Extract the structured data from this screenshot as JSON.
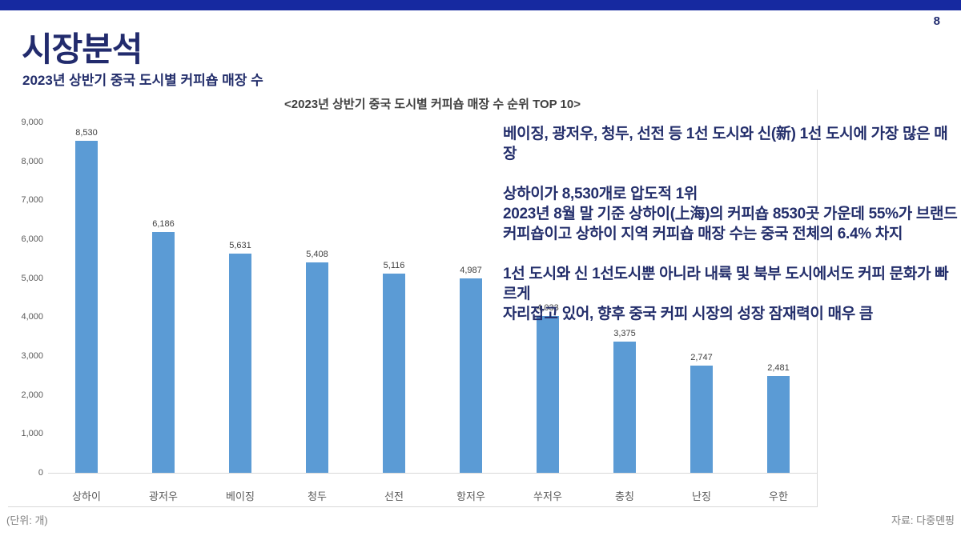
{
  "page": {
    "number": "8"
  },
  "header": {
    "title": "시장분석",
    "subtitle": "2023년 상반기 중국 도시별 커피숍 매장 수"
  },
  "chart_data": {
    "type": "bar",
    "title": "<2023년 상반기 중국 도시별 커피숍 매장 수 순위 TOP 10>",
    "categories": [
      "상하이",
      "광저우",
      "베이징",
      "청두",
      "선전",
      "항저우",
      "쑤저우",
      "충칭",
      "난징",
      "우한"
    ],
    "values": [
      8530,
      6186,
      5631,
      5408,
      5116,
      4987,
      4033,
      3375,
      2747,
      2481
    ],
    "value_labels": [
      "8,530",
      "6,186",
      "5,631",
      "5,408",
      "5,116",
      "4,987",
      "4,033",
      "3,375",
      "2,747",
      "2,481"
    ],
    "y_tick_labels": [
      "0",
      "1,000",
      "2,000",
      "3,000",
      "4,000",
      "5,000",
      "6,000",
      "7,000",
      "8,000",
      "9,000"
    ],
    "ylim": [
      0,
      9000
    ],
    "y_tick_step": 1000,
    "grid": "off",
    "legend": "none",
    "unit_note": "(단위: 개)",
    "source": "자료: 다중뎬핑"
  },
  "insights": {
    "paragraphs": [
      {
        "lines": [
          "베이징, 광저우, 청두, 선전 등 1선 도시와 신(新) 1선 도시에 가장 많은 매장"
        ]
      },
      {
        "lines": [
          "상하이가 8,530개로 압도적 1위",
          "2023년 8월 말 기준 상하이(上海)의 커피숍 8530곳 가운데 55%가 브랜드",
          "커피숍이고 상하이 지역 커피숍 매장 수는 중국 전체의 6.4% 차지"
        ]
      },
      {
        "lines": [
          "1선 도시와 신 1선도시뿐 아니라 내륙 및 북부 도시에서도 커피 문화가 빠르게",
          "자리잡고 있어, 향후 중국 커피 시장의 성장 잠재력이 매우 큼"
        ]
      }
    ]
  },
  "colors": {
    "accent_bar": "#1629a0",
    "title_navy": "#222b6d",
    "body_navy": "#232e6b",
    "bar_blue": "#5b9bd5",
    "axis_gray": "#595959",
    "data_label_gray": "#404040",
    "border_gray": "#d9d9d9",
    "note_gray": "#7f7f7f"
  }
}
